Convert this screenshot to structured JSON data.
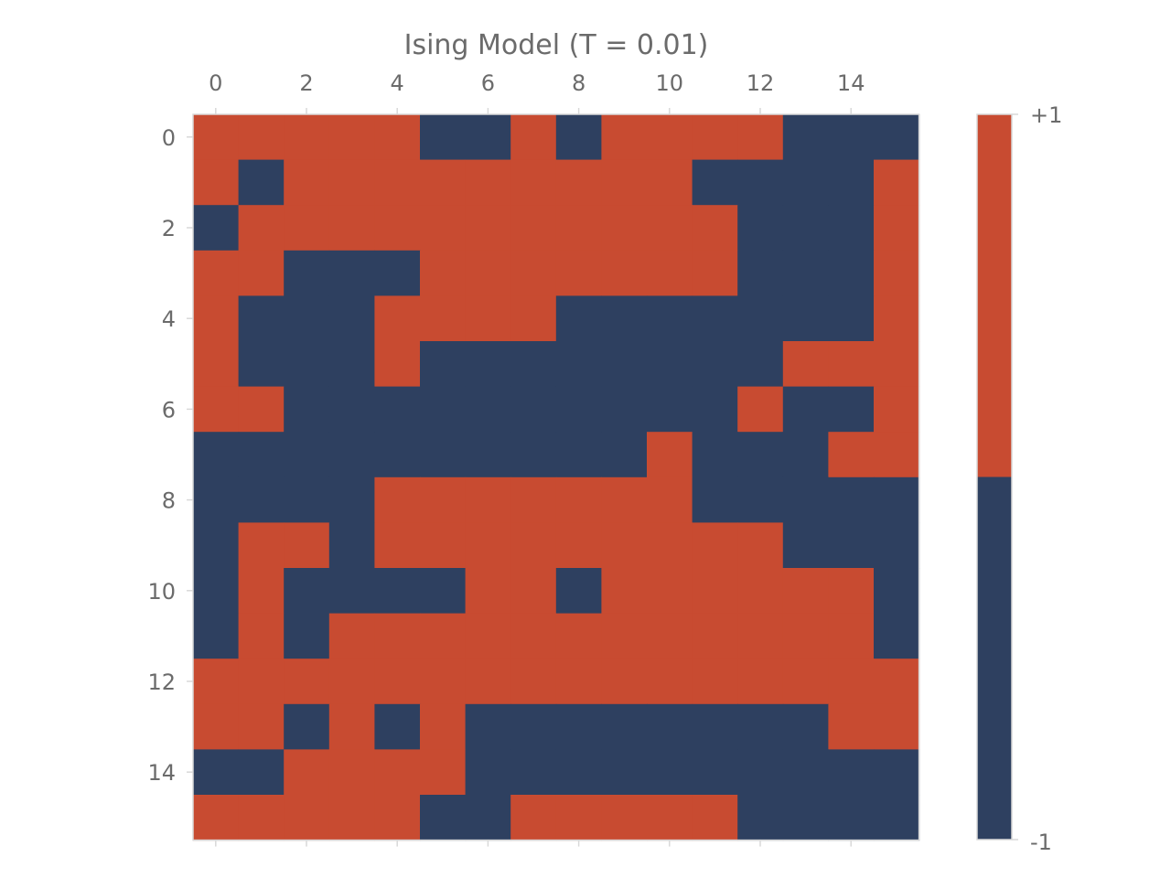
{
  "chart_data": {
    "type": "heatmap",
    "title": "Ising Model (T = 0.01)",
    "rows": 16,
    "cols": 16,
    "x_ticks": [
      "0",
      "2",
      "4",
      "6",
      "8",
      "10",
      "12",
      "14"
    ],
    "y_ticks": [
      "0",
      "2",
      "4",
      "6",
      "8",
      "10",
      "12",
      "14"
    ],
    "colorbar": {
      "max_label": "+1",
      "min_label": "-1",
      "max_value": 1,
      "min_value": -1
    },
    "colors": {
      "plus": "#c84b31",
      "minus": "#2e4060",
      "text": "#6b6b6b",
      "axis": "#d9d9d9"
    },
    "values": [
      [
        1,
        1,
        1,
        1,
        1,
        -1,
        -1,
        1,
        -1,
        1,
        1,
        1,
        1,
        -1,
        -1,
        -1
      ],
      [
        1,
        -1,
        1,
        1,
        1,
        1,
        1,
        1,
        1,
        1,
        1,
        -1,
        -1,
        -1,
        -1,
        1
      ],
      [
        -1,
        1,
        1,
        1,
        1,
        1,
        1,
        1,
        1,
        1,
        1,
        1,
        -1,
        -1,
        -1,
        1
      ],
      [
        1,
        1,
        -1,
        -1,
        -1,
        1,
        1,
        1,
        1,
        1,
        1,
        1,
        -1,
        -1,
        -1,
        1
      ],
      [
        1,
        -1,
        -1,
        -1,
        1,
        1,
        1,
        1,
        -1,
        -1,
        -1,
        -1,
        -1,
        -1,
        -1,
        1
      ],
      [
        1,
        -1,
        -1,
        -1,
        1,
        -1,
        -1,
        -1,
        -1,
        -1,
        -1,
        -1,
        -1,
        1,
        1,
        1
      ],
      [
        1,
        1,
        -1,
        -1,
        -1,
        -1,
        -1,
        -1,
        -1,
        -1,
        -1,
        -1,
        1,
        -1,
        -1,
        1
      ],
      [
        -1,
        -1,
        -1,
        -1,
        -1,
        -1,
        -1,
        -1,
        -1,
        -1,
        1,
        -1,
        -1,
        -1,
        1,
        1
      ],
      [
        -1,
        -1,
        -1,
        -1,
        1,
        1,
        1,
        1,
        1,
        1,
        1,
        -1,
        -1,
        -1,
        -1,
        -1
      ],
      [
        -1,
        1,
        1,
        -1,
        1,
        1,
        1,
        1,
        1,
        1,
        1,
        1,
        1,
        -1,
        -1,
        -1
      ],
      [
        -1,
        1,
        -1,
        -1,
        -1,
        -1,
        1,
        1,
        -1,
        1,
        1,
        1,
        1,
        1,
        1,
        -1
      ],
      [
        -1,
        1,
        -1,
        1,
        1,
        1,
        1,
        1,
        1,
        1,
        1,
        1,
        1,
        1,
        1,
        -1
      ],
      [
        1,
        1,
        1,
        1,
        1,
        1,
        1,
        1,
        1,
        1,
        1,
        1,
        1,
        1,
        1,
        1
      ],
      [
        1,
        1,
        -1,
        1,
        -1,
        1,
        -1,
        -1,
        -1,
        -1,
        -1,
        -1,
        -1,
        -1,
        1,
        1
      ],
      [
        -1,
        -1,
        1,
        1,
        1,
        1,
        -1,
        -1,
        -1,
        -1,
        -1,
        -1,
        -1,
        -1,
        -1,
        -1
      ],
      [
        1,
        1,
        1,
        1,
        1,
        -1,
        -1,
        1,
        1,
        1,
        1,
        1,
        -1,
        -1,
        -1,
        -1
      ]
    ]
  }
}
